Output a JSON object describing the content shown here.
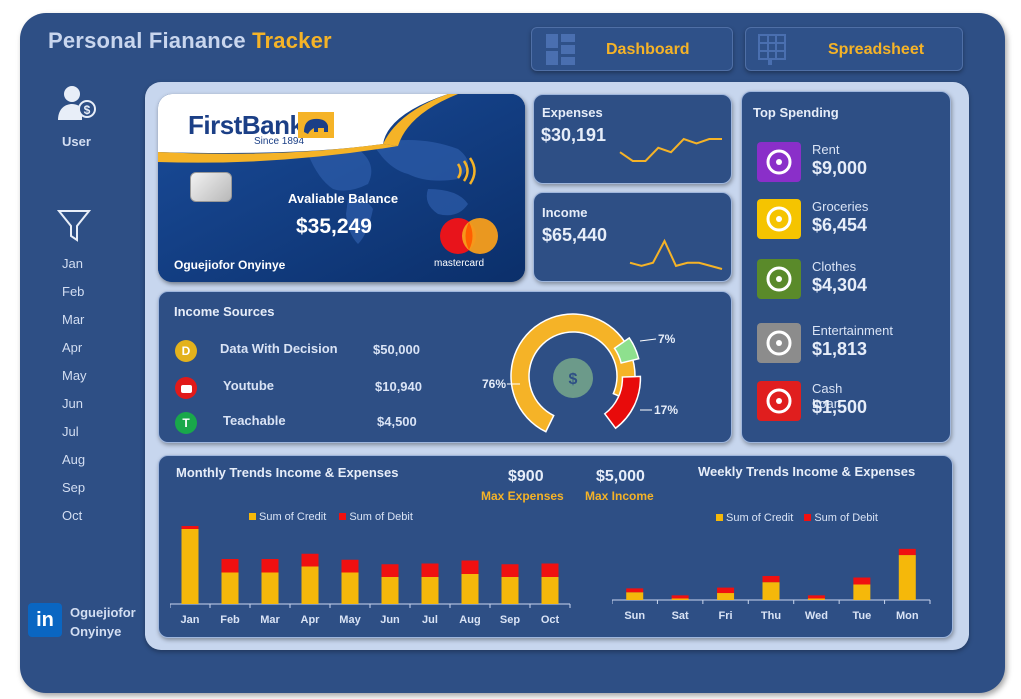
{
  "header": {
    "title_main": "Personal Fianance",
    "title_accent": "Tracker",
    "nav": [
      {
        "label": "Dashboard",
        "icon": "dashboard-grid-icon"
      },
      {
        "label": "Spreadsheet",
        "icon": "spreadsheet-icon"
      }
    ]
  },
  "sidebar": {
    "user_label": "User",
    "filter_icon": "filter-icon",
    "months": [
      "Jan",
      "Feb",
      "Mar",
      "Apr",
      "May",
      "Jun",
      "Jul",
      "Aug",
      "Sep",
      "Oct"
    ],
    "author_first": "Oguejiofor",
    "author_last": "Onyinye"
  },
  "bank_card": {
    "brand": "FirstBank",
    "since": "Since 1894",
    "balance_label": "Avaliable Balance",
    "balance": "$35,249",
    "holder": "Oguejiofor Onyinye",
    "network": "mastercard"
  },
  "expenses_card": {
    "label": "Expenses",
    "value": "$30,191",
    "trend": [
      5,
      3,
      3,
      6,
      5,
      8,
      7,
      8,
      8
    ]
  },
  "income_card": {
    "label": "Income",
    "value": "$65,440",
    "trend": [
      2,
      1,
      2,
      9,
      1,
      2,
      2,
      1,
      0
    ]
  },
  "top_spending": {
    "title": "Top Spending",
    "items": [
      {
        "name": "Rent",
        "value": "$9,000",
        "color": "#8a2fc9",
        "icon": "house-icon"
      },
      {
        "name": "Groceries",
        "value": "$6,454",
        "color": "#f5c400",
        "icon": "groceries-bag-icon"
      },
      {
        "name": "Clothes",
        "value": "$4,304",
        "color": "#5a8a2a",
        "icon": "shirt-icon"
      },
      {
        "name": "Entertainment",
        "value": "$1,813",
        "color": "#8c8c8c",
        "icon": "film-reel-icon"
      },
      {
        "name": "Cash Loan",
        "value": "$1,500",
        "color": "#e01e1e",
        "icon": "cash-loan-icon"
      }
    ]
  },
  "income_sources": {
    "title": "Income Sources",
    "items": [
      {
        "name": "Data With Decision",
        "value": "$50,000",
        "color": "#e3b21c",
        "badge": "D"
      },
      {
        "name": "Youtube",
        "value": "$10,940",
        "color": "#e11a1a",
        "badge": "youtube-icon"
      },
      {
        "name": "Teachable",
        "value": "$4,500",
        "color": "#19a84a",
        "badge": "T"
      }
    ]
  },
  "kpis": [
    {
      "value": "$900",
      "label": "Max Expenses"
    },
    {
      "value": "$5,000",
      "label": "Max Income"
    }
  ],
  "chart_data": [
    {
      "type": "pie",
      "title": "",
      "categories": [
        "Data With Decision",
        "Youtube",
        "Teachable"
      ],
      "values": [
        76,
        17,
        7
      ],
      "labels": [
        "76%",
        "17%",
        "7%"
      ],
      "colors": [
        "#f5b327",
        "#e80b0b",
        "#8ee08e"
      ]
    },
    {
      "type": "bar",
      "stacked": true,
      "title": "Monthly Trends Income & Expenses",
      "categories": [
        "Jan",
        "Feb",
        "Mar",
        "Apr",
        "May",
        "Jun",
        "Jul",
        "Aug",
        "Sep",
        "Oct"
      ],
      "series": [
        {
          "name": "Sum of Credit",
          "color": "#f5b80a",
          "values": [
            5000,
            2100,
            2100,
            2500,
            2100,
            1800,
            1800,
            2000,
            1800,
            1800
          ]
        },
        {
          "name": "Sum of Debit",
          "color": "#f01010",
          "values": [
            650,
            900,
            900,
            850,
            850,
            850,
            900,
            900,
            850,
            900
          ]
        }
      ],
      "ylim": [
        0,
        6000
      ],
      "legend": "top"
    },
    {
      "type": "bar",
      "stacked": true,
      "title": "Weekly Trends Income & Expenses",
      "categories": [
        "Sun",
        "Sat",
        "Fri",
        "Thu",
        "Wed",
        "Tue",
        "Mon"
      ],
      "series": [
        {
          "name": "Sum of Credit",
          "color": "#f5b80a",
          "values": [
            1000,
            200,
            900,
            2300,
            200,
            2000,
            5800
          ]
        },
        {
          "name": "Sum of Debit",
          "color": "#f01010",
          "values": [
            500,
            400,
            700,
            800,
            400,
            900,
            800
          ]
        }
      ],
      "ylim": [
        0,
        8000
      ],
      "legend": "top"
    }
  ]
}
